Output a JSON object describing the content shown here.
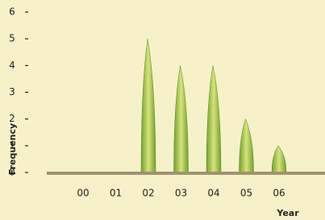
{
  "chart_data": {
    "type": "leaf-bar",
    "x_label": "Year",
    "y_label": "Frequency",
    "categories": [
      "00",
      "01",
      "02",
      "03",
      "04",
      "05",
      "06"
    ],
    "values": [
      0,
      0,
      5,
      4,
      4,
      2,
      1
    ],
    "color": "#6fa22e",
    "ylim": [
      0,
      6
    ],
    "yticks": [
      0,
      1,
      2,
      3,
      4,
      5,
      6
    ]
  }
}
